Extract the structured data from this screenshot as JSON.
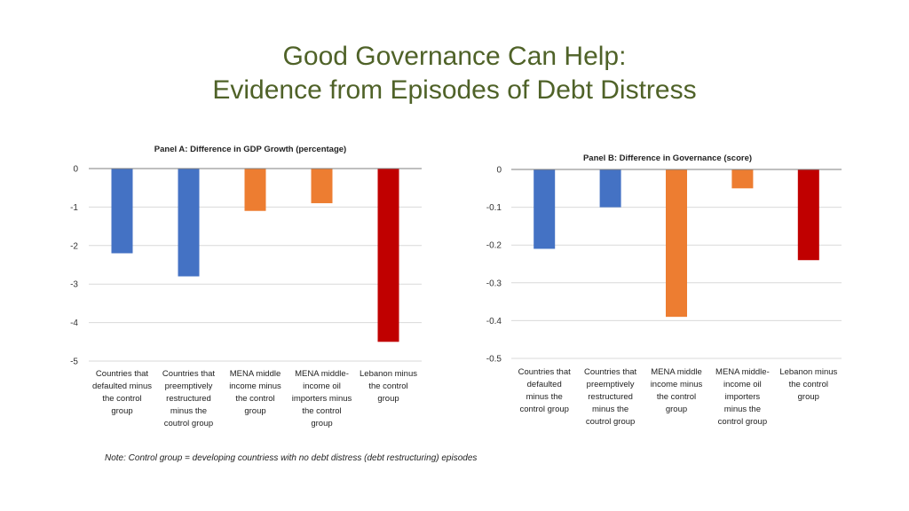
{
  "slide": {
    "title_line1": "Good Governance Can Help:",
    "title_line2": "Evidence from Episodes of Debt Distress",
    "note": "Note: Control group = developing countriess with no debt distress (debt restructuring) episodes"
  },
  "colors": {
    "blue": "#4472c4",
    "orange": "#ed7d31",
    "red": "#c00000",
    "title": "#4f6228",
    "grid": "#d9d9d9"
  },
  "chart_data": [
    {
      "type": "bar",
      "title": "Panel A: Difference in GDP Growth (percentage)",
      "categories": [
        [
          "Countries that",
          "defaulted minus",
          "the control",
          "group"
        ],
        [
          "Countries that",
          "preemptively",
          "restructured",
          "minus the",
          "coutrol group"
        ],
        [
          "MENA middle",
          "income minus",
          "the control",
          "group"
        ],
        [
          "MENA middle-",
          "income oil",
          "importers minus",
          "the control",
          "group"
        ],
        [
          "Lebanon minus",
          "the control",
          "group"
        ]
      ],
      "values": [
        -2.2,
        -2.8,
        -1.1,
        -0.9,
        -4.5
      ],
      "bar_colors": [
        "#4472c4",
        "#4472c4",
        "#ed7d31",
        "#ed7d31",
        "#c00000"
      ],
      "yticks": [
        "0",
        "-1",
        "-2",
        "-3",
        "-4",
        "-5"
      ],
      "ylim": [
        -5,
        0
      ],
      "grid": true
    },
    {
      "type": "bar",
      "title": "Panel B: Difference in Governance (score)",
      "categories": [
        [
          "Countries that",
          "defaulted",
          "minus the",
          "control group"
        ],
        [
          "Countries that",
          "preemptively",
          "restructured",
          "minus the",
          "coutrol group"
        ],
        [
          "MENA middle",
          "income minus",
          "the control",
          "group"
        ],
        [
          "MENA middle-",
          "income oil",
          "importers",
          "minus the",
          "control group"
        ],
        [
          "Lebanon minus",
          "the control",
          "group"
        ]
      ],
      "values": [
        -0.21,
        -0.1,
        -0.39,
        -0.05,
        -0.24
      ],
      "bar_colors": [
        "#4472c4",
        "#4472c4",
        "#ed7d31",
        "#ed7d31",
        "#c00000"
      ],
      "yticks": [
        "0",
        "-0.1",
        "-0.2",
        "-0.3",
        "-0.4",
        "-0.5"
      ],
      "ylim": [
        -0.5,
        0
      ],
      "grid": true
    }
  ]
}
